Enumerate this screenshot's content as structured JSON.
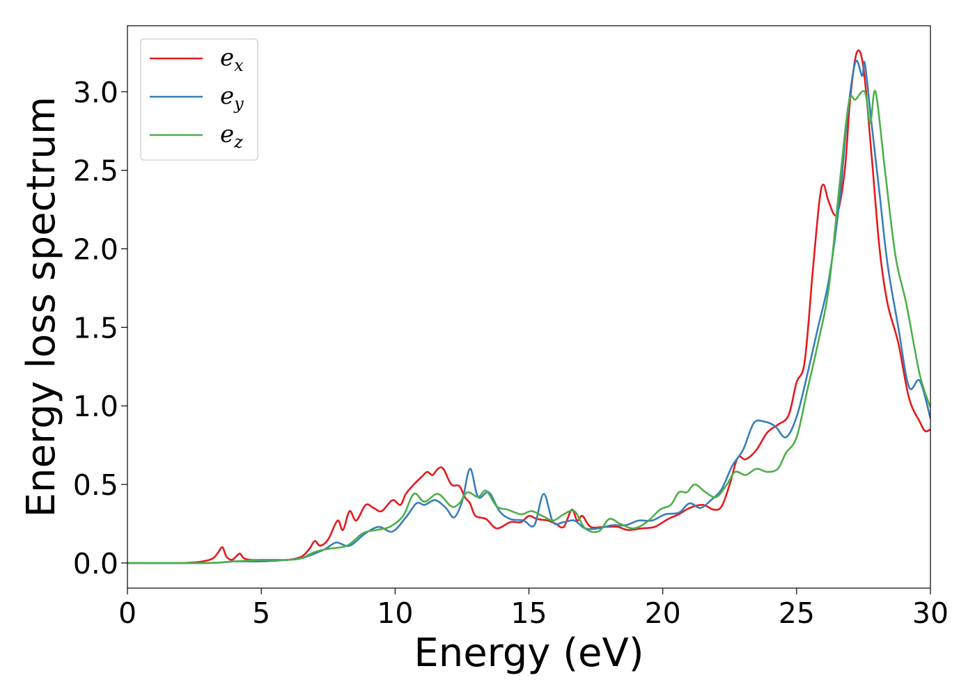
{
  "chart_data": {
    "type": "line",
    "title": "",
    "xlabel": "Energy (eV)",
    "ylabel": "Energy loss spectrum",
    "xlim": [
      0,
      30
    ],
    "ylim": [
      -0.16,
      3.42
    ],
    "xticks": [
      "0",
      "5",
      "10",
      "15",
      "20",
      "25",
      "30"
    ],
    "yticks": [
      "0.0",
      "0.5",
      "1.0",
      "1.5",
      "2.0",
      "2.5",
      "3.0"
    ],
    "grid": false,
    "legend": {
      "placement": "top-left",
      "entries": [
        {
          "base": "e",
          "sub": "x",
          "color": "#e41a1c"
        },
        {
          "base": "e",
          "sub": "y",
          "color": "#377eb8"
        },
        {
          "base": "e",
          "sub": "z",
          "color": "#4daf4a"
        }
      ]
    },
    "series": [
      {
        "color": "#e41a1c",
        "points": [
          [
            0,
            0
          ],
          [
            2,
            0
          ],
          [
            2.8,
            0.01
          ],
          [
            3.2,
            0.03
          ],
          [
            3.4,
            0.07
          ],
          [
            3.55,
            0.1
          ],
          [
            3.7,
            0.04
          ],
          [
            3.9,
            0.02
          ],
          [
            4.05,
            0.04
          ],
          [
            4.2,
            0.06
          ],
          [
            4.35,
            0.03
          ],
          [
            4.6,
            0.02
          ],
          [
            5,
            0.02
          ],
          [
            5.5,
            0.02
          ],
          [
            6,
            0.02
          ],
          [
            6.5,
            0.04
          ],
          [
            6.8,
            0.09
          ],
          [
            7.0,
            0.14
          ],
          [
            7.2,
            0.11
          ],
          [
            7.5,
            0.15
          ],
          [
            7.85,
            0.27
          ],
          [
            8.05,
            0.21
          ],
          [
            8.3,
            0.33
          ],
          [
            8.55,
            0.27
          ],
          [
            8.9,
            0.37
          ],
          [
            9.2,
            0.35
          ],
          [
            9.5,
            0.33
          ],
          [
            9.9,
            0.4
          ],
          [
            10.2,
            0.37
          ],
          [
            10.4,
            0.44
          ],
          [
            10.7,
            0.5
          ],
          [
            11.0,
            0.55
          ],
          [
            11.2,
            0.58
          ],
          [
            11.4,
            0.56
          ],
          [
            11.6,
            0.6
          ],
          [
            11.8,
            0.6
          ],
          [
            12.1,
            0.5
          ],
          [
            12.4,
            0.49
          ],
          [
            12.6,
            0.42
          ],
          [
            12.8,
            0.38
          ],
          [
            13.0,
            0.3
          ],
          [
            13.4,
            0.28
          ],
          [
            13.8,
            0.22
          ],
          [
            14.3,
            0.26
          ],
          [
            14.7,
            0.26
          ],
          [
            15.0,
            0.3
          ],
          [
            15.3,
            0.28
          ],
          [
            15.7,
            0.27
          ],
          [
            16.0,
            0.25
          ],
          [
            16.3,
            0.23
          ],
          [
            16.6,
            0.34
          ],
          [
            16.8,
            0.27
          ],
          [
            17.0,
            0.3
          ],
          [
            17.3,
            0.23
          ],
          [
            17.8,
            0.23
          ],
          [
            18.3,
            0.23
          ],
          [
            18.7,
            0.21
          ],
          [
            19.2,
            0.22
          ],
          [
            19.7,
            0.23
          ],
          [
            20.2,
            0.28
          ],
          [
            20.6,
            0.31
          ],
          [
            21.0,
            0.35
          ],
          [
            21.5,
            0.37
          ],
          [
            21.9,
            0.34
          ],
          [
            22.2,
            0.36
          ],
          [
            22.5,
            0.5
          ],
          [
            22.8,
            0.67
          ],
          [
            23.1,
            0.66
          ],
          [
            23.5,
            0.72
          ],
          [
            23.9,
            0.83
          ],
          [
            24.3,
            0.88
          ],
          [
            24.7,
            0.94
          ],
          [
            25.0,
            1.15
          ],
          [
            25.3,
            1.28
          ],
          [
            25.6,
            1.85
          ],
          [
            25.85,
            2.3
          ],
          [
            26.0,
            2.41
          ],
          [
            26.2,
            2.3
          ],
          [
            26.5,
            2.22
          ],
          [
            26.8,
            2.5
          ],
          [
            27.0,
            2.95
          ],
          [
            27.25,
            3.25
          ],
          [
            27.5,
            3.15
          ],
          [
            27.8,
            2.6
          ],
          [
            28.1,
            2.0
          ],
          [
            28.4,
            1.65
          ],
          [
            28.8,
            1.4
          ],
          [
            29.2,
            1.05
          ],
          [
            29.6,
            0.9
          ],
          [
            29.8,
            0.84
          ],
          [
            30,
            0.85
          ]
        ]
      },
      {
        "color": "#377eb8",
        "points": [
          [
            0,
            0
          ],
          [
            3,
            0
          ],
          [
            4,
            0.01
          ],
          [
            5,
            0.01
          ],
          [
            6,
            0.02
          ],
          [
            6.5,
            0.03
          ],
          [
            7,
            0.06
          ],
          [
            7.4,
            0.09
          ],
          [
            7.8,
            0.13
          ],
          [
            8.3,
            0.11
          ],
          [
            8.9,
            0.19
          ],
          [
            9.4,
            0.23
          ],
          [
            9.9,
            0.2
          ],
          [
            10.4,
            0.29
          ],
          [
            10.8,
            0.38
          ],
          [
            11.1,
            0.37
          ],
          [
            11.5,
            0.4
          ],
          [
            11.9,
            0.35
          ],
          [
            12.2,
            0.29
          ],
          [
            12.5,
            0.39
          ],
          [
            12.8,
            0.6
          ],
          [
            13.1,
            0.42
          ],
          [
            13.5,
            0.45
          ],
          [
            13.9,
            0.33
          ],
          [
            14.3,
            0.28
          ],
          [
            14.8,
            0.27
          ],
          [
            15.2,
            0.24
          ],
          [
            15.55,
            0.44
          ],
          [
            15.9,
            0.26
          ],
          [
            16.3,
            0.26
          ],
          [
            16.7,
            0.27
          ],
          [
            17.1,
            0.22
          ],
          [
            17.6,
            0.22
          ],
          [
            18.1,
            0.24
          ],
          [
            18.6,
            0.24
          ],
          [
            19.1,
            0.27
          ],
          [
            19.6,
            0.27
          ],
          [
            20.1,
            0.31
          ],
          [
            20.6,
            0.32
          ],
          [
            21.0,
            0.38
          ],
          [
            21.4,
            0.35
          ],
          [
            21.8,
            0.4
          ],
          [
            22.2,
            0.47
          ],
          [
            22.6,
            0.62
          ],
          [
            23.0,
            0.72
          ],
          [
            23.4,
            0.89
          ],
          [
            23.8,
            0.9
          ],
          [
            24.2,
            0.87
          ],
          [
            24.6,
            0.8
          ],
          [
            25.0,
            0.93
          ],
          [
            25.4,
            1.2
          ],
          [
            25.8,
            1.5
          ],
          [
            26.2,
            1.8
          ],
          [
            26.6,
            2.3
          ],
          [
            26.9,
            2.85
          ],
          [
            27.2,
            3.19
          ],
          [
            27.45,
            3.1
          ],
          [
            27.55,
            3.18
          ],
          [
            27.8,
            2.8
          ],
          [
            28.1,
            2.35
          ],
          [
            28.4,
            1.9
          ],
          [
            28.8,
            1.5
          ],
          [
            29.2,
            1.12
          ],
          [
            29.6,
            1.16
          ],
          [
            30,
            0.92
          ]
        ]
      },
      {
        "color": "#4daf4a",
        "points": [
          [
            0,
            0
          ],
          [
            3,
            0
          ],
          [
            4,
            0.01
          ],
          [
            5,
            0.02
          ],
          [
            6,
            0.02
          ],
          [
            6.5,
            0.03
          ],
          [
            7,
            0.07
          ],
          [
            7.5,
            0.09
          ],
          [
            8.2,
            0.11
          ],
          [
            8.8,
            0.19
          ],
          [
            9.3,
            0.21
          ],
          [
            9.8,
            0.23
          ],
          [
            10.3,
            0.3
          ],
          [
            10.7,
            0.44
          ],
          [
            11.1,
            0.39
          ],
          [
            11.6,
            0.44
          ],
          [
            12.1,
            0.36
          ],
          [
            12.4,
            0.38
          ],
          [
            12.7,
            0.45
          ],
          [
            13.1,
            0.42
          ],
          [
            13.4,
            0.46
          ],
          [
            13.8,
            0.36
          ],
          [
            14.2,
            0.34
          ],
          [
            14.7,
            0.31
          ],
          [
            15.1,
            0.33
          ],
          [
            15.5,
            0.3
          ],
          [
            15.9,
            0.27
          ],
          [
            16.3,
            0.31
          ],
          [
            16.7,
            0.33
          ],
          [
            17.1,
            0.22
          ],
          [
            17.6,
            0.2
          ],
          [
            18.0,
            0.28
          ],
          [
            18.4,
            0.25
          ],
          [
            18.9,
            0.22
          ],
          [
            19.4,
            0.26
          ],
          [
            19.9,
            0.34
          ],
          [
            20.3,
            0.37
          ],
          [
            20.6,
            0.45
          ],
          [
            20.9,
            0.45
          ],
          [
            21.2,
            0.5
          ],
          [
            21.6,
            0.45
          ],
          [
            22.0,
            0.42
          ],
          [
            22.4,
            0.5
          ],
          [
            22.7,
            0.58
          ],
          [
            23.1,
            0.56
          ],
          [
            23.5,
            0.6
          ],
          [
            23.9,
            0.58
          ],
          [
            24.3,
            0.6
          ],
          [
            24.6,
            0.7
          ],
          [
            25.0,
            0.8
          ],
          [
            25.4,
            1.1
          ],
          [
            25.8,
            1.4
          ],
          [
            26.2,
            1.75
          ],
          [
            26.6,
            2.4
          ],
          [
            26.95,
            2.93
          ],
          [
            27.2,
            2.95
          ],
          [
            27.55,
            3.0
          ],
          [
            27.75,
            2.8
          ],
          [
            27.95,
            3.0
          ],
          [
            28.3,
            2.5
          ],
          [
            28.7,
            1.95
          ],
          [
            29.1,
            1.65
          ],
          [
            29.6,
            1.2
          ],
          [
            30,
            0.99
          ]
        ]
      }
    ]
  }
}
